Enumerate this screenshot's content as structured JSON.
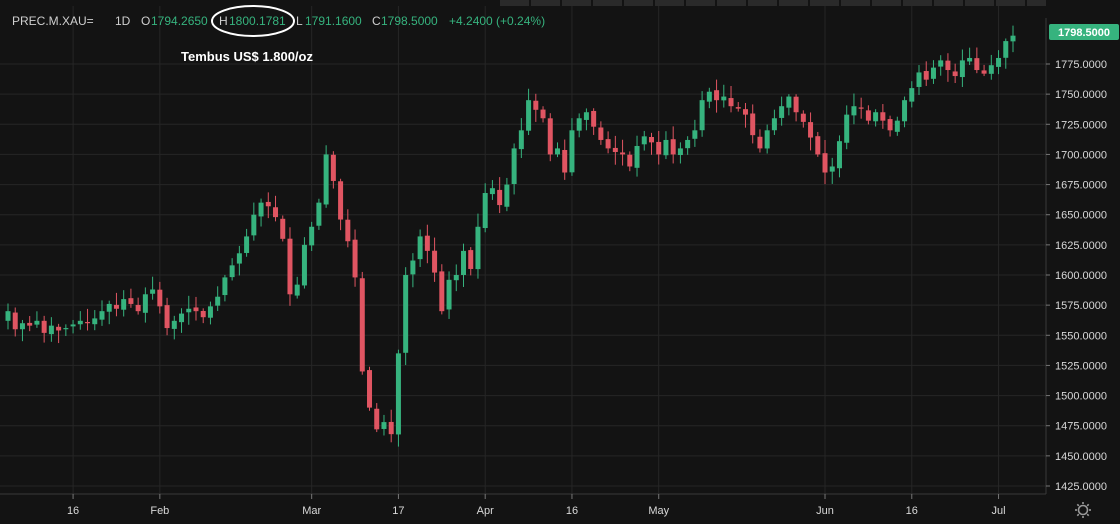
{
  "header": {
    "symbol": "PREC.M.XAU=",
    "interval": "1D",
    "open_label": "O",
    "open": "1794.2650",
    "high_label": "H",
    "high": "1800.1781",
    "low_label": "L",
    "low": "1791.1600",
    "close_label": "C",
    "close": "1798.5000",
    "change": "+4.2400 (+0.24%)"
  },
  "annotation": {
    "text": "Tembus US$ 1.800/oz"
  },
  "current_price_tag": "1798.5000",
  "colors": {
    "background": "#131313",
    "grid": "#262626",
    "up": "#36b37e",
    "down": "#e05562",
    "price_tag": "#36b37e",
    "annotation_ring": "#ffffff"
  },
  "settings_icon": "gear-icon",
  "chart_data": {
    "type": "candlestick",
    "ylim": [
      1415,
      1805
    ],
    "yticks": [
      "1425.0000",
      "1450.0000",
      "1475.0000",
      "1500.0000",
      "1525.0000",
      "1550.0000",
      "1575.0000",
      "1600.0000",
      "1625.0000",
      "1650.0000",
      "1675.0000",
      "1700.0000",
      "1725.0000",
      "1750.0000",
      "1775.0000"
    ],
    "xticks": [
      {
        "label": "16",
        "index": 9
      },
      {
        "label": "Feb",
        "index": 21
      },
      {
        "label": "Mar",
        "index": 42
      },
      {
        "label": "17",
        "index": 54
      },
      {
        "label": "Apr",
        "index": 66
      },
      {
        "label": "16",
        "index": 78
      },
      {
        "label": "May",
        "index": 90
      },
      {
        "label": "Jun",
        "index": 113
      },
      {
        "label": "16",
        "index": 125
      },
      {
        "label": "Jul",
        "index": 137
      }
    ],
    "closes": [
      1570,
      1555,
      1560,
      1558,
      1562,
      1552,
      1558,
      1554,
      1556,
      1559,
      1562,
      1560,
      1564,
      1570,
      1576,
      1572,
      1580,
      1576,
      1570,
      1584,
      1588,
      1574,
      1556,
      1562,
      1568,
      1572,
      1570,
      1565,
      1574,
      1582,
      1598,
      1608,
      1618,
      1632,
      1650,
      1660,
      1657,
      1648,
      1630,
      1584,
      1592,
      1625,
      1640,
      1660,
      1700,
      1678,
      1646,
      1628,
      1598,
      1520,
      1490,
      1472,
      1478,
      1468,
      1535,
      1600,
      1612,
      1632,
      1620,
      1602,
      1570,
      1596,
      1600,
      1620,
      1605,
      1640,
      1668,
      1672,
      1658,
      1675,
      1705,
      1720,
      1745,
      1737,
      1730,
      1700,
      1705,
      1685,
      1720,
      1730,
      1735,
      1723,
      1712,
      1705,
      1702,
      1700,
      1690,
      1707,
      1715,
      1710,
      1700,
      1712,
      1700,
      1705,
      1712,
      1720,
      1745,
      1752,
      1745,
      1748,
      1740,
      1738,
      1733,
      1716,
      1705,
      1720,
      1730,
      1740,
      1748,
      1735,
      1727,
      1714,
      1700,
      1685,
      1690,
      1711,
      1733,
      1740,
      1738,
      1728,
      1735,
      1728,
      1720,
      1728,
      1745,
      1755,
      1768,
      1762,
      1772,
      1778,
      1770,
      1765,
      1778,
      1780,
      1770,
      1767,
      1774,
      1780,
      1794,
      1798.5
    ]
  }
}
